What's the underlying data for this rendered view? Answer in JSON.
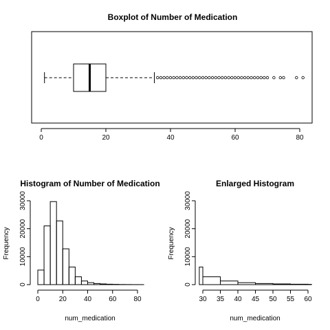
{
  "chart_data": [
    {
      "type": "boxplot",
      "title": "Boxplot of Number of Medication",
      "orientation": "horizontal",
      "xlim": [
        0,
        82
      ],
      "xticks": [
        "0",
        "20",
        "40",
        "60",
        "80"
      ],
      "whisker_low": 1,
      "q1": 10,
      "median": 15,
      "q3": 20,
      "whisker_high": 35,
      "outliers": [
        36,
        37,
        38,
        39,
        40,
        41,
        42,
        43,
        44,
        45,
        46,
        47,
        48,
        49,
        50,
        51,
        52,
        53,
        54,
        55,
        56,
        57,
        58,
        59,
        60,
        61,
        62,
        63,
        64,
        65,
        66,
        67,
        68,
        69,
        70,
        72,
        74,
        75,
        79,
        81
      ]
    },
    {
      "type": "bar",
      "title": "Histogram of Number of Medication",
      "xlabel": "num_medication",
      "ylabel": "Frequency",
      "xlim": [
        0,
        85
      ],
      "ylim": [
        0,
        30000
      ],
      "xticks": [
        "0",
        "20",
        "40",
        "60",
        "80"
      ],
      "yticks": [
        "0",
        "10000",
        "20000",
        "30000"
      ],
      "bins": [
        {
          "from": 0,
          "to": 5,
          "value": 5200
        },
        {
          "from": 5,
          "to": 10,
          "value": 21000
        },
        {
          "from": 10,
          "to": 15,
          "value": 29700
        },
        {
          "from": 15,
          "to": 20,
          "value": 22800
        },
        {
          "from": 20,
          "to": 25,
          "value": 12800
        },
        {
          "from": 25,
          "to": 30,
          "value": 6300
        },
        {
          "from": 30,
          "to": 35,
          "value": 2800
        },
        {
          "from": 35,
          "to": 40,
          "value": 1300
        },
        {
          "from": 40,
          "to": 45,
          "value": 700
        },
        {
          "from": 45,
          "to": 50,
          "value": 400
        },
        {
          "from": 50,
          "to": 55,
          "value": 250
        },
        {
          "from": 55,
          "to": 60,
          "value": 150
        },
        {
          "from": 60,
          "to": 65,
          "value": 100
        },
        {
          "from": 65,
          "to": 70,
          "value": 50
        },
        {
          "from": 70,
          "to": 75,
          "value": 30
        },
        {
          "from": 75,
          "to": 80,
          "value": 15
        },
        {
          "from": 80,
          "to": 85,
          "value": 10
        }
      ]
    },
    {
      "type": "bar",
      "title": "Enlarged Histogram",
      "xlabel": "num_medication",
      "ylabel": "Frequency",
      "xlim": [
        29,
        61
      ],
      "ylim": [
        0,
        30000
      ],
      "xticks": [
        "30",
        "35",
        "40",
        "45",
        "50",
        "55",
        "60"
      ],
      "yticks": [
        "0",
        "10000",
        "20000",
        "30000"
      ],
      "bins": [
        {
          "from": 29,
          "to": 30,
          "value": 6300
        },
        {
          "from": 30,
          "to": 35,
          "value": 2800
        },
        {
          "from": 35,
          "to": 40,
          "value": 1300
        },
        {
          "from": 40,
          "to": 45,
          "value": 700
        },
        {
          "from": 45,
          "to": 50,
          "value": 400
        },
        {
          "from": 50,
          "to": 55,
          "value": 250
        },
        {
          "from": 55,
          "to": 60,
          "value": 150
        },
        {
          "from": 60,
          "to": 61,
          "value": 100
        }
      ]
    }
  ]
}
